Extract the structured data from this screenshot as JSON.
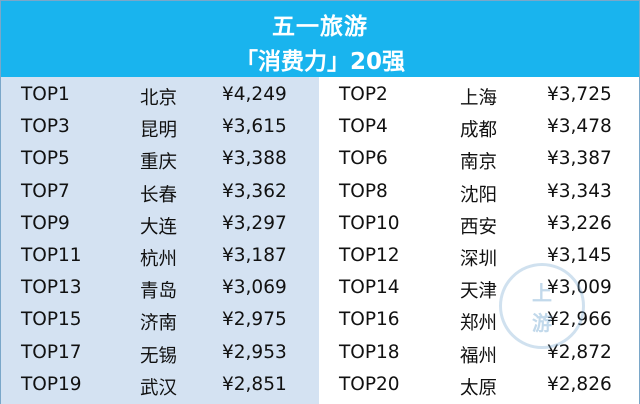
{
  "header": {
    "title": "五一旅游",
    "subtitle": "「消费力」20强"
  },
  "left_rows": [
    {
      "rank": "TOP1",
      "city": "北京",
      "amount": "¥4,249"
    },
    {
      "rank": "TOP3",
      "city": "昆明",
      "amount": "¥3,615"
    },
    {
      "rank": "TOP5",
      "city": "重庆",
      "amount": "¥3,388"
    },
    {
      "rank": "TOP7",
      "city": "长春",
      "amount": "¥3,362"
    },
    {
      "rank": "TOP9",
      "city": "大连",
      "amount": "¥3,297"
    },
    {
      "rank": "TOP11",
      "city": "杭州",
      "amount": "¥3,187"
    },
    {
      "rank": "TOP13",
      "city": "青岛",
      "amount": "¥3,069"
    },
    {
      "rank": "TOP15",
      "city": "济南",
      "amount": "¥2,975"
    },
    {
      "rank": "TOP17",
      "city": "无锡",
      "amount": "¥2,953"
    },
    {
      "rank": "TOP19",
      "city": "武汉",
      "amount": "¥2,851"
    }
  ],
  "right_rows": [
    {
      "rank": "TOP2",
      "city": "上海",
      "amount": "¥3,725"
    },
    {
      "rank": "TOP4",
      "city": "成都",
      "amount": "¥3,478"
    },
    {
      "rank": "TOP6",
      "city": "南京",
      "amount": "¥3,387"
    },
    {
      "rank": "TOP8",
      "city": "沈阳",
      "amount": "¥3,343"
    },
    {
      "rank": "TOP10",
      "city": "西安",
      "amount": "¥3,226"
    },
    {
      "rank": "TOP12",
      "city": "深圳",
      "amount": "¥3,145"
    },
    {
      "rank": "TOP14",
      "city": "天津",
      "amount": "¥3,009"
    },
    {
      "rank": "TOP16",
      "city": "郑州",
      "amount": "¥2,966"
    },
    {
      "rank": "TOP18",
      "city": "福州",
      "amount": "¥2,872"
    },
    {
      "rank": "TOP20",
      "city": "太原",
      "amount": "¥2,826"
    }
  ],
  "watermark": {
    "line1": "上",
    "line2": "游"
  },
  "colors": {
    "header_bg": "#19b4ee",
    "left_panel_bg": "#d4e2f2",
    "right_panel_bg": "#ffffff"
  }
}
